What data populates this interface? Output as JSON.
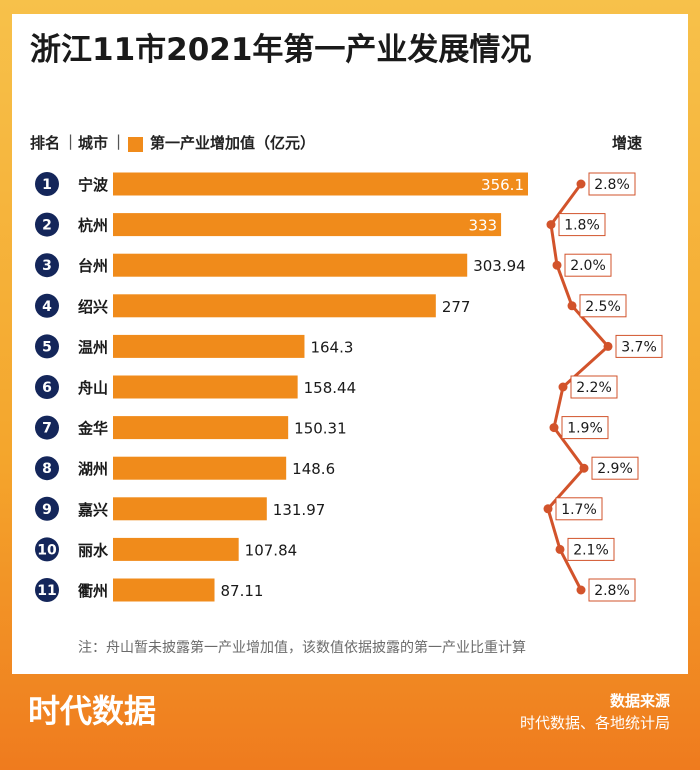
{
  "title": "浙江11市2021年第一产业发展情况",
  "header": {
    "rank_label": "排名",
    "city_label": "城市",
    "sep": "|",
    "legend_label": "第一产业增加值（亿元）",
    "growth_label": "增速"
  },
  "note": "注：舟山暂未披露第一产业增加值，该数值依据披露的第一产业比重计算",
  "source": {
    "title": "数据来源",
    "text": "时代数据、各地统计局"
  },
  "logo_text": "时代数据",
  "colors": {
    "bar": "#f08b1b",
    "rank_circle": "#14265a",
    "growth_line": "#d2532b",
    "growth_box_border": "#d2532b"
  },
  "chart_data": {
    "type": "bar",
    "orientation": "horizontal",
    "ranks": [
      "1",
      "2",
      "3",
      "4",
      "5",
      "6",
      "7",
      "8",
      "9",
      "10",
      "11"
    ],
    "categories": [
      "宁波",
      "杭州",
      "台州",
      "绍兴",
      "温州",
      "舟山",
      "金华",
      "湖州",
      "嘉兴",
      "丽水",
      "衢州"
    ],
    "value_labels": [
      "356.1",
      "333",
      "303.94",
      "277",
      "164.3",
      "158.44",
      "150.31",
      "148.6",
      "131.97",
      "107.84",
      "87.11"
    ],
    "values": [
      356.1,
      333,
      303.94,
      277,
      164.3,
      158.44,
      150.31,
      148.6,
      131.97,
      107.84,
      87.11
    ],
    "growth_labels": [
      "2.8%",
      "1.8%",
      "2.0%",
      "2.5%",
      "3.7%",
      "2.2%",
      "1.9%",
      "2.9%",
      "1.7%",
      "2.1%",
      "2.8%"
    ],
    "growth": [
      2.8,
      1.8,
      2.0,
      2.5,
      3.7,
      2.2,
      1.9,
      2.9,
      1.7,
      2.1,
      2.8
    ]
  }
}
